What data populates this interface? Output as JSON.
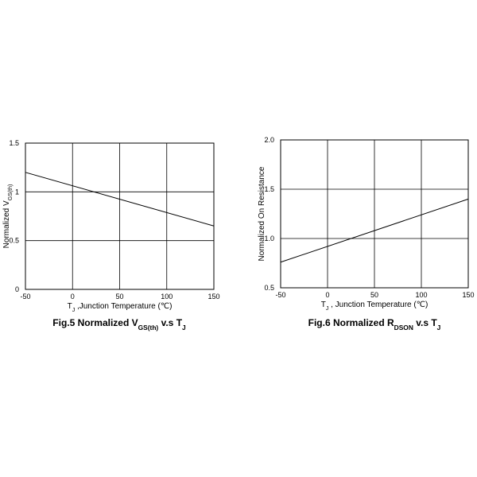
{
  "chart_data": [
    {
      "type": "line",
      "title": [
        "Fig.5 Normalized V",
        "GS(th)",
        " v.s T",
        "J"
      ],
      "xlabel": [
        "T",
        "J",
        " ,Junction Temperature (℃)"
      ],
      "ylabel": [
        "Normalized  V",
        "GS(th)"
      ],
      "x": [
        -50,
        150
      ],
      "series": [
        {
          "color": "#000000",
          "values": [
            1.2,
            0.65
          ]
        }
      ],
      "xlim": [
        -50,
        150
      ],
      "xticks": [
        -50,
        0,
        50,
        100,
        150
      ],
      "ylim": [
        0,
        1.5
      ],
      "yticks": [
        0,
        0.5,
        1,
        1.5
      ],
      "grid": true
    },
    {
      "type": "line",
      "title": [
        "Fig.6 Normalized R",
        "DSON",
        " v.s T",
        "J"
      ],
      "xlabel": [
        "T",
        "J",
        " , Junction Temperature (℃)"
      ],
      "ylabel": [
        "Normalized On Resistance"
      ],
      "x": [
        -50,
        150
      ],
      "series": [
        {
          "color": "#000000",
          "values": [
            0.76,
            1.4
          ]
        }
      ],
      "xlim": [
        -50,
        150
      ],
      "xticks": [
        -50,
        0,
        50,
        100,
        150
      ],
      "ylim": [
        0.5,
        2.0
      ],
      "yticks": [
        {
          "value": 0.5,
          "label": "0.5"
        },
        {
          "value": 1.0,
          "label": "1.0"
        },
        {
          "value": 1.5,
          "label": "1.5"
        },
        {
          "value": 2.0,
          "label": "2.0"
        }
      ],
      "grid": true
    }
  ]
}
